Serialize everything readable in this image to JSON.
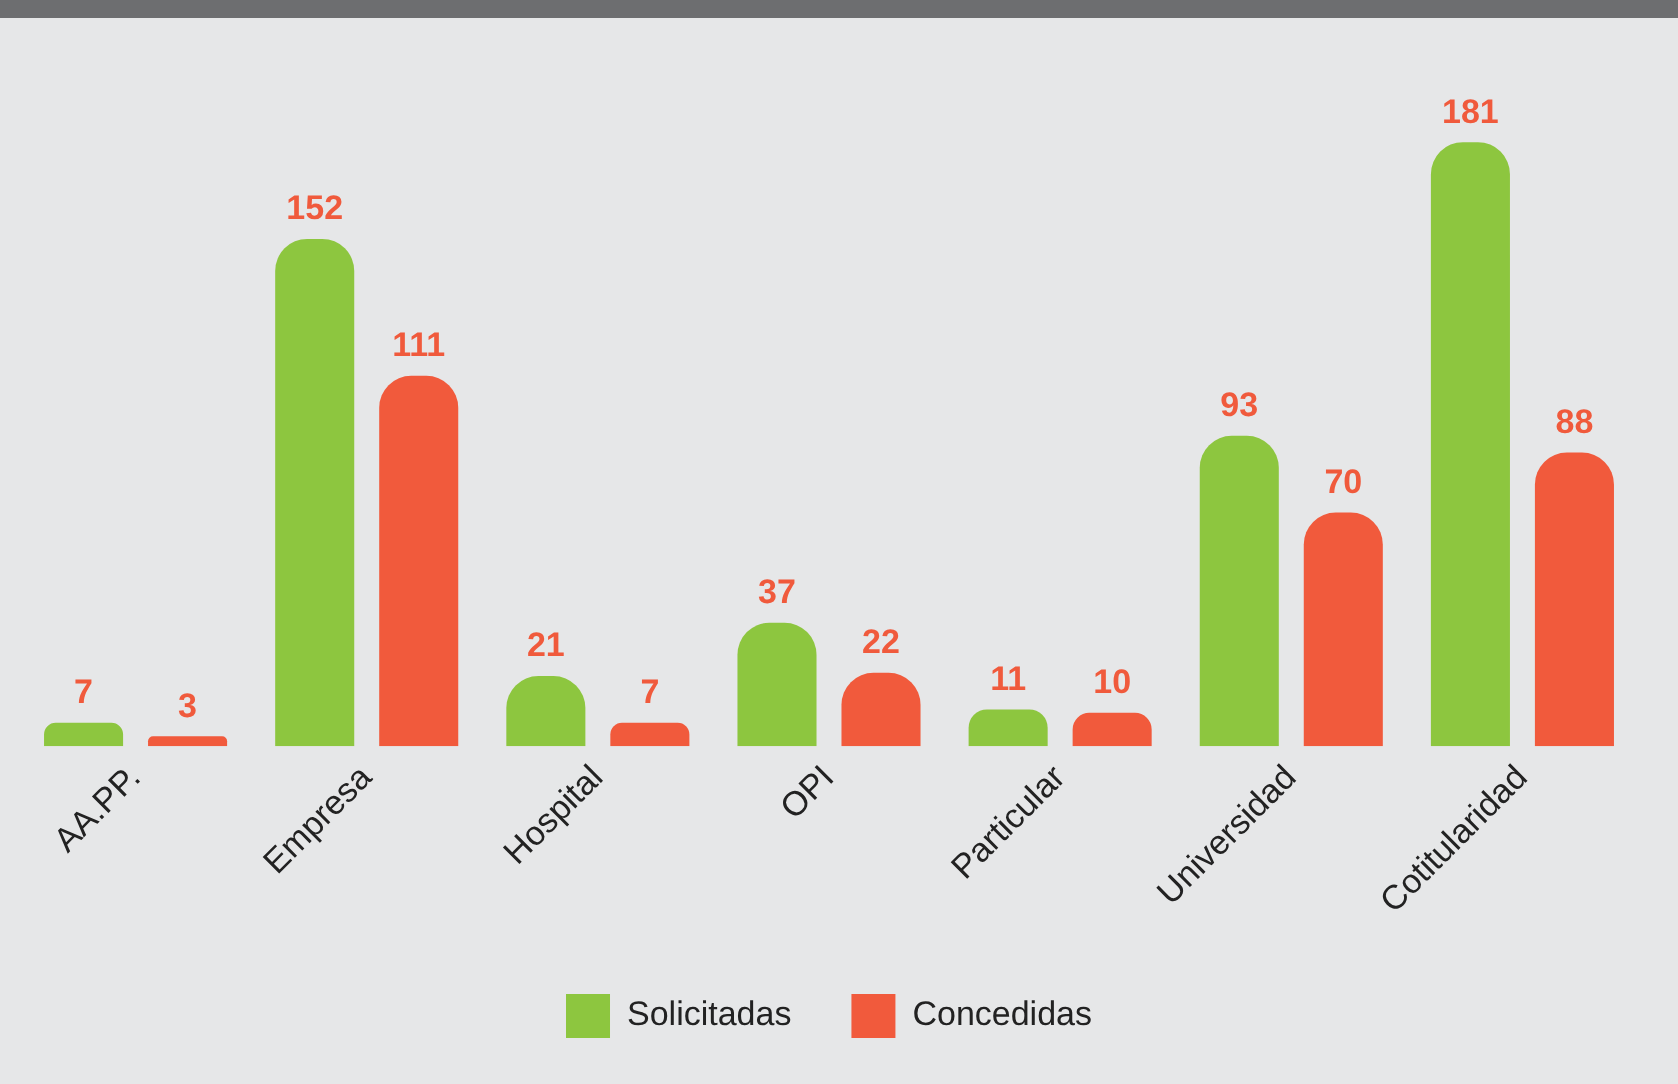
{
  "chart_data": {
    "type": "bar",
    "categories": [
      "AA.PP.",
      "Empresa",
      "Hospital",
      "OPI",
      "Particular",
      "Universidad",
      "Cotitularidad"
    ],
    "series": [
      {
        "name": "Solicitadas",
        "color": "#8dc63f",
        "values": [
          7,
          152,
          21,
          37,
          11,
          93,
          181
        ]
      },
      {
        "name": "Concedidas",
        "color": "#f15a3c",
        "values": [
          3,
          111,
          7,
          22,
          10,
          70,
          88
        ]
      }
    ],
    "data_labels": true,
    "legend": "bottom",
    "grid": false
  }
}
